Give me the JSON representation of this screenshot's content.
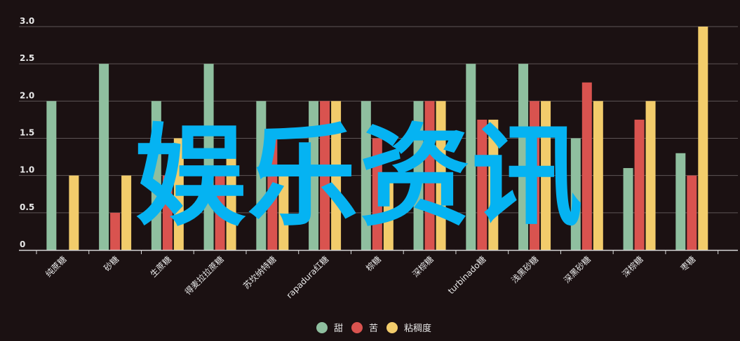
{
  "chart_data": {
    "type": "bar",
    "categories": [
      "纯蔗糖",
      "砂糖",
      "生蔗糖",
      "得麦拉拉蔗糖",
      "苏坎纳特糖",
      "rapadura红糖",
      "棕糖",
      "深棕糖",
      "turbinado糖",
      "浅黑砂糖",
      "深黑砂糖",
      "深棕糖",
      "枣糖"
    ],
    "series": [
      {
        "name": "甜",
        "color": "#8fbf9f",
        "values": [
          2.0,
          2.5,
          2.0,
          2.5,
          2.0,
          2.0,
          2.0,
          2.0,
          2.5,
          2.5,
          1.5,
          1.1,
          1.3
        ]
      },
      {
        "name": "苦",
        "color": "#d9534f",
        "values": [
          0,
          0.5,
          1.0,
          1.0,
          1.5,
          2.0,
          1.5,
          2.0,
          1.75,
          2.0,
          2.25,
          1.75,
          1.0
        ]
      },
      {
        "name": "粘稠度",
        "color": "#f2cc6b",
        "values": [
          1.0,
          1.0,
          1.5,
          1.5,
          1.0,
          2.0,
          1.0,
          2.0,
          1.75,
          2.0,
          2.0,
          2.0,
          3.0
        ]
      }
    ],
    "yticks": [
      "0",
      "0.5",
      "1.0",
      "1.5",
      "2.0",
      "2.5",
      "3.0"
    ],
    "ylim": [
      0,
      3
    ],
    "grid": true,
    "legend_position": "bottom-center"
  },
  "watermark": "娱乐资讯",
  "colors": {
    "background": "#1b1112",
    "grid": "#5e5556",
    "axis": "#d8d8d8",
    "watermark": "#05b3f2"
  }
}
